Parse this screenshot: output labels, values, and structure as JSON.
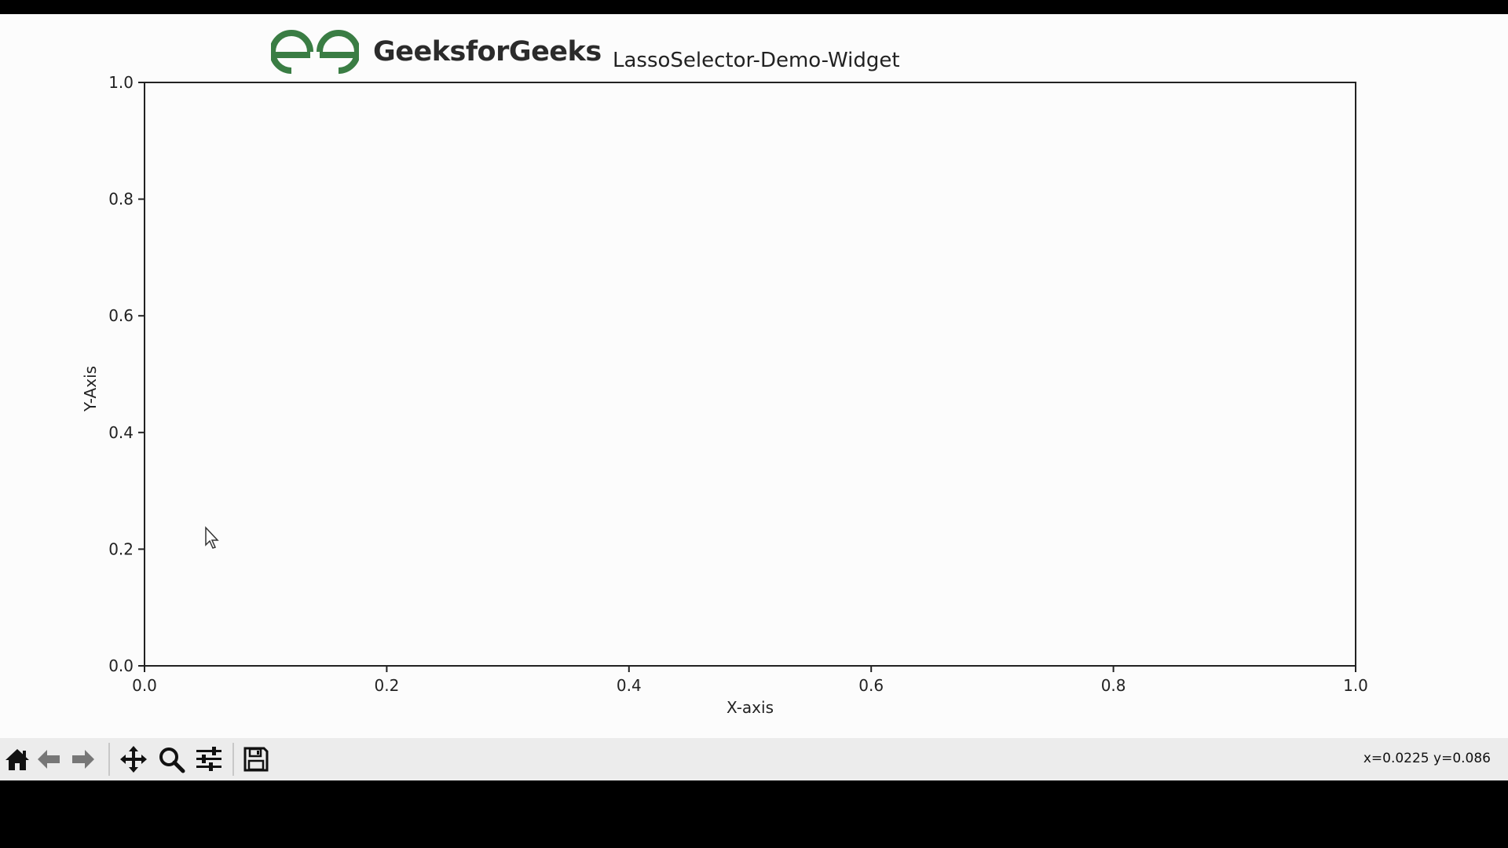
{
  "app": {
    "brand_name": "GeeksforGeeks",
    "brand_color": "#3a7d44"
  },
  "toolbar": {
    "buttons": [
      {
        "name": "home",
        "icon": "home-icon"
      },
      {
        "name": "back",
        "icon": "arrow-left-icon"
      },
      {
        "name": "forward",
        "icon": "arrow-right-icon"
      },
      {
        "name": "pan",
        "icon": "move-icon"
      },
      {
        "name": "zoom",
        "icon": "magnifier-icon"
      },
      {
        "name": "configure-subplots",
        "icon": "sliders-icon"
      },
      {
        "name": "save",
        "icon": "floppy-disk-icon"
      }
    ],
    "coordinates": "x=0.0225 y=0.086"
  },
  "chart_data": {
    "type": "scatter",
    "title": "LassoSelector-Demo-Widget",
    "xlabel": "X-axis",
    "ylabel": "Y-Axis",
    "xlim": [
      0.0,
      1.0
    ],
    "ylim": [
      0.0,
      1.0
    ],
    "xticks": [
      "0.0",
      "0.2",
      "0.4",
      "0.6",
      "0.8",
      "1.0"
    ],
    "yticks": [
      "0.0",
      "0.2",
      "0.4",
      "0.6",
      "0.8",
      "1.0"
    ],
    "series": [],
    "grid": false
  }
}
